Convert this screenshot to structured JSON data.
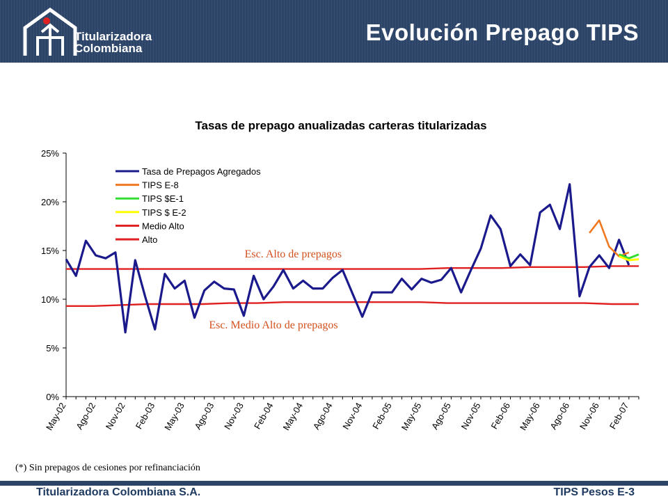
{
  "header": {
    "logo_line1": "Titularizadora",
    "logo_line2": "Colombiana",
    "title": "Evolución Prepago TIPS"
  },
  "footnote": "(*) Sin prepagos de cesiones por refinanciación",
  "footer": {
    "company": "Titularizadora Colombiana S.A.",
    "doc_label": "TIPS Pesos E-3"
  },
  "colors": {
    "header_bg": "#2b4468",
    "agregados": "#1a1a8c",
    "e8": "#f07820",
    "e1": "#33dd33",
    "e2": "#ffff00",
    "medio_alto": "#e02020",
    "alto": "#e02020",
    "annotation": "#d4501e"
  },
  "chart_data": {
    "type": "line",
    "title": "Tasas de prepago anualizadas carteras titularizadas",
    "ylim": [
      0,
      25
    ],
    "y_ticks": [
      "0%",
      "5%",
      "10%",
      "15%",
      "20%",
      "25%"
    ],
    "x_tick_labels": [
      "May-02",
      "Ago-02",
      "Nov-02",
      "Feb-03",
      "May-03",
      "Ago-03",
      "Nov-03",
      "Feb-04",
      "May-04",
      "Ago-04",
      "Nov-04",
      "Feb-05",
      "May-05",
      "Ago-05",
      "Nov-05",
      "Feb-06",
      "May-06",
      "Ago-06",
      "Nov-06",
      "Feb-07"
    ],
    "x_start": "May-02",
    "x_end": "Mar-07",
    "grid": false,
    "legend_position": "top-left",
    "series": [
      {
        "name": "Tasa de Prepagos Agregados",
        "color_key": "agregados",
        "start": "May-02",
        "values": [
          14.1,
          12.4,
          16.0,
          14.5,
          14.2,
          14.8,
          6.6,
          14.0,
          10.3,
          6.9,
          12.6,
          11.1,
          11.9,
          8.1,
          10.9,
          11.8,
          11.1,
          11.0,
          8.3,
          12.4,
          10.0,
          11.3,
          13.0,
          11.1,
          11.9,
          11.1,
          11.1,
          12.2,
          13.0,
          10.6,
          8.2,
          10.7,
          10.7,
          10.7,
          12.1,
          11.0,
          12.1,
          11.7,
          12.0,
          13.2,
          10.7,
          13.0,
          15.2,
          18.6,
          17.2,
          13.4,
          14.6,
          13.5,
          18.9,
          19.7,
          17.2,
          21.8,
          10.3,
          13.3,
          14.5,
          13.2,
          16.1,
          13.5
        ]
      },
      {
        "name": "TIPS E-8",
        "color_key": "e8",
        "start": "Oct-06",
        "values": [
          16.8,
          18.1,
          15.4,
          14.4,
          14.8
        ]
      },
      {
        "name": "TIPS $E-1",
        "color_key": "e1",
        "start": "Jan-07",
        "values": [
          14.6,
          14.2,
          14.6
        ]
      },
      {
        "name": "TIPS $ E-2",
        "color_key": "e2",
        "start": "Jan-07",
        "values": [
          14.4,
          14.0,
          14.1
        ]
      },
      {
        "name": "Medio Alto",
        "color_key": "medio_alto",
        "start": "May-02",
        "values": [
          9.3,
          9.3,
          9.4,
          9.5,
          9.5,
          9.5,
          9.6,
          9.6,
          9.7,
          9.7,
          9.7,
          9.7,
          9.7,
          9.7,
          9.6,
          9.6,
          9.6,
          9.6,
          9.6,
          9.6,
          9.5,
          9.5
        ]
      },
      {
        "name": "Alto",
        "color_key": "alto",
        "start": "May-02",
        "values": [
          13.1,
          13.1,
          13.1,
          13.1,
          13.1,
          13.1,
          13.1,
          13.1,
          13.1,
          13.1,
          13.1,
          13.1,
          13.1,
          13.1,
          13.2,
          13.2,
          13.2,
          13.3,
          13.3,
          13.3,
          13.4,
          13.4
        ]
      }
    ],
    "annotations": [
      {
        "text": "Esc. Alto de prepagos",
        "at": "Abr-04",
        "y": 14.3
      },
      {
        "text": "Esc. Medio Alto de prepagos",
        "at": "Feb-04",
        "y": 7.0
      }
    ]
  }
}
